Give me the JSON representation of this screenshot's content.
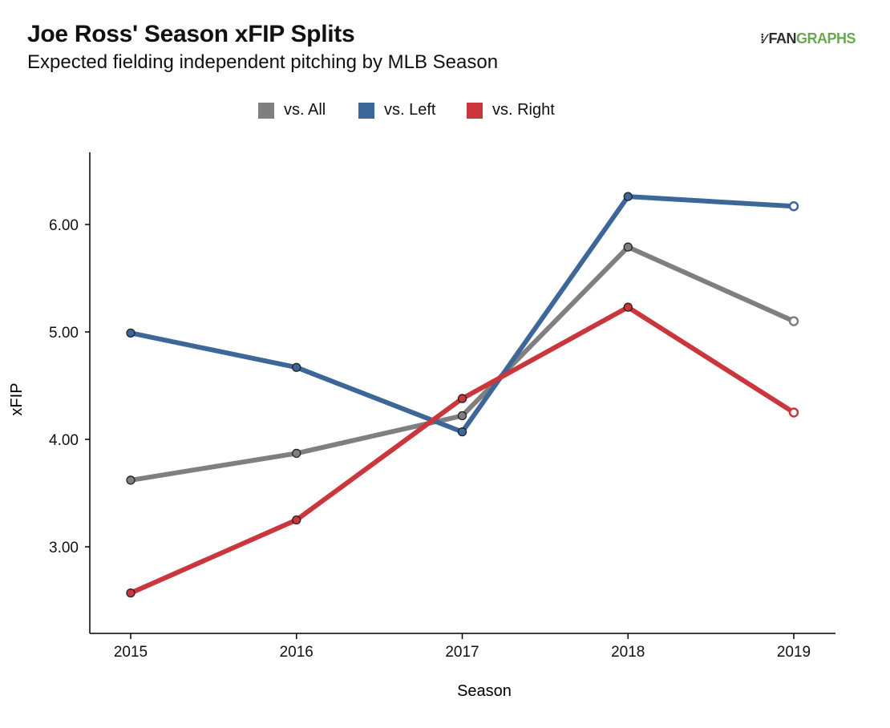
{
  "header": {
    "title": "Joe Ross' Season xFIP Splits",
    "subtitle": "Expected fielding independent pitching by MLB Season"
  },
  "logo": {
    "part1": "FAN",
    "part2": "GRAPHS"
  },
  "colors": {
    "all": "#7f7f7f",
    "left": "#3e6799",
    "right": "#c9363c",
    "brand": "#6aa84f"
  },
  "chart_data": {
    "type": "line",
    "title": "Joe Ross' Season xFIP Splits",
    "subtitle": "Expected fielding independent pitching by MLB Season",
    "xlabel": "Season",
    "ylabel": "xFIP",
    "categories": [
      "2015",
      "2016",
      "2017",
      "2018",
      "2019"
    ],
    "yticks": [
      "3.00",
      "4.00",
      "5.00",
      "6.00"
    ],
    "ylim": [
      2.2,
      6.75
    ],
    "grid": false,
    "legend_position": "top",
    "series": [
      {
        "name": "vs. All",
        "color": "#7f7f7f",
        "values": [
          3.62,
          3.87,
          4.22,
          5.79,
          5.1
        ],
        "hollow_last": true
      },
      {
        "name": "vs. Left",
        "color": "#3e6799",
        "values": [
          4.99,
          4.67,
          4.07,
          6.26,
          6.17
        ],
        "hollow_last": true
      },
      {
        "name": "vs. Right",
        "color": "#c9363c",
        "values": [
          2.57,
          3.25,
          4.38,
          5.23,
          4.25
        ],
        "hollow_last": true
      }
    ]
  }
}
